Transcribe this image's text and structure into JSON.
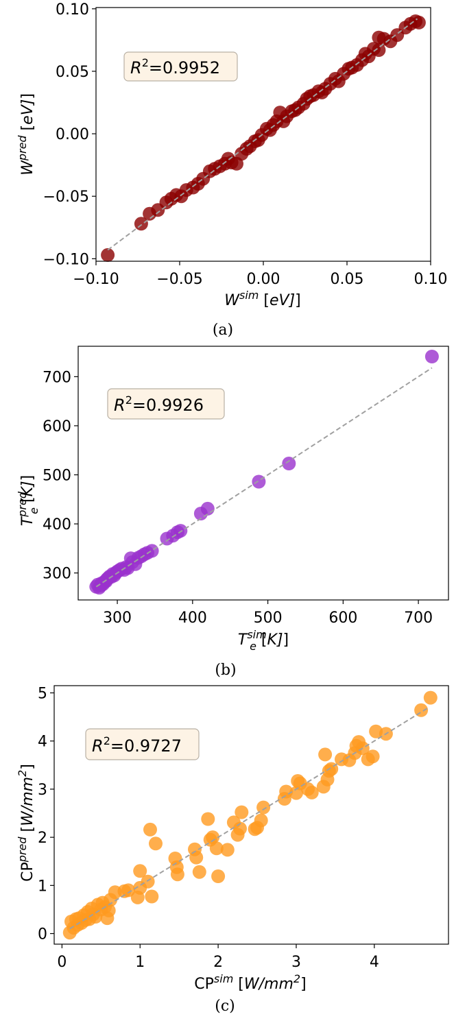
{
  "chart_data": [
    {
      "type": "scatter",
      "caption": "(a)",
      "xlabel": {
        "base": "W",
        "sup": "sim",
        "unit": " [eV]"
      },
      "ylabel": {
        "base": "W",
        "sup": "pred",
        "unit": " [eV]"
      },
      "annotation": {
        "base": "R",
        "sup": "2",
        "value": "=0.9952"
      },
      "xlim": [
        -0.1,
        0.1
      ],
      "ylim": [
        -0.102,
        0.101
      ],
      "xticks": [
        -0.1,
        -0.05,
        0.0,
        0.05,
        0.1
      ],
      "xtick_labels": [
        "−0.10",
        "−0.05",
        "0.00",
        "0.05",
        "0.10"
      ],
      "yticks": [
        -0.1,
        -0.05,
        0.0,
        0.05,
        0.1
      ],
      "ytick_labels": [
        "−0.10",
        "−0.05",
        "0.00",
        "0.05",
        "0.10"
      ],
      "fit_line": [
        [
          -0.093,
          -0.093
        ],
        [
          0.092,
          0.092
        ]
      ],
      "marker_color": "#8b0000",
      "line_color": "#a0a0a0",
      "points": [
        [
          -0.093,
          -0.097
        ],
        [
          -0.073,
          -0.072
        ],
        [
          -0.068,
          -0.064
        ],
        [
          -0.063,
          -0.061
        ],
        [
          -0.058,
          -0.055
        ],
        [
          -0.055,
          -0.052
        ],
        [
          -0.052,
          -0.049
        ],
        [
          -0.049,
          -0.05
        ],
        [
          -0.046,
          -0.045
        ],
        [
          -0.042,
          -0.043
        ],
        [
          -0.039,
          -0.04
        ],
        [
          -0.036,
          -0.036
        ],
        [
          -0.032,
          -0.03
        ],
        [
          -0.029,
          -0.028
        ],
        [
          -0.026,
          -0.026
        ],
        [
          -0.023,
          -0.024
        ],
        [
          -0.021,
          -0.02
        ],
        [
          -0.019,
          -0.023
        ],
        [
          -0.016,
          -0.024
        ],
        [
          -0.013,
          -0.016
        ],
        [
          -0.01,
          -0.012
        ],
        [
          -0.008,
          -0.01
        ],
        [
          -0.005,
          -0.006
        ],
        [
          -0.003,
          -0.005
        ],
        [
          -0.001,
          -0.001
        ],
        [
          0.002,
          0.004
        ],
        [
          0.004,
          0.003
        ],
        [
          0.006,
          0.007
        ],
        [
          0.008,
          0.01
        ],
        [
          0.01,
          0.017
        ],
        [
          0.012,
          0.01
        ],
        [
          0.014,
          0.014
        ],
        [
          0.017,
          0.018
        ],
        [
          0.019,
          0.019
        ],
        [
          0.021,
          0.021
        ],
        [
          0.024,
          0.024
        ],
        [
          0.026,
          0.028
        ],
        [
          0.028,
          0.03
        ],
        [
          0.03,
          0.031
        ],
        [
          0.033,
          0.034
        ],
        [
          0.035,
          0.033
        ],
        [
          0.037,
          0.036
        ],
        [
          0.04,
          0.04
        ],
        [
          0.043,
          0.044
        ],
        [
          0.045,
          0.042
        ],
        [
          0.048,
          0.048
        ],
        [
          0.051,
          0.052
        ],
        [
          0.053,
          0.053
        ],
        [
          0.056,
          0.055
        ],
        [
          0.059,
          0.059
        ],
        [
          0.061,
          0.064
        ],
        [
          0.063,
          0.062
        ],
        [
          0.066,
          0.068
        ],
        [
          0.069,
          0.067
        ],
        [
          0.069,
          0.077
        ],
        [
          0.072,
          0.076
        ],
        [
          0.076,
          0.074
        ],
        [
          0.08,
          0.079
        ],
        [
          0.085,
          0.085
        ],
        [
          0.088,
          0.088
        ],
        [
          0.091,
          0.09
        ],
        [
          0.093,
          0.089
        ]
      ]
    },
    {
      "type": "scatter",
      "caption": "(b)",
      "xlabel": {
        "base": "T",
        "sup": "sim",
        "sub": "e",
        "unit": " [K]"
      },
      "ylabel": {
        "base": "T",
        "sup": "pred",
        "sub": "e",
        "unit": " [K]"
      },
      "annotation": {
        "base": "R",
        "sup": "2",
        "value": "=0.9926"
      },
      "xlim": [
        248,
        740
      ],
      "ylim": [
        245,
        762
      ],
      "xticks": [
        300,
        400,
        500,
        600,
        700
      ],
      "xtick_labels": [
        "300",
        "400",
        "500",
        "600",
        "700"
      ],
      "yticks": [
        300,
        400,
        500,
        600,
        700
      ],
      "ytick_labels": [
        "300",
        "400",
        "500",
        "600",
        "700"
      ],
      "fit_line": [
        [
          272,
          272
        ],
        [
          718,
          718
        ]
      ],
      "marker_color": "#9a32cd",
      "line_color": "#a0a0a0",
      "points": [
        [
          272,
          272
        ],
        [
          274,
          276
        ],
        [
          276,
          270
        ],
        [
          278,
          274
        ],
        [
          279,
          279
        ],
        [
          281,
          277
        ],
        [
          283,
          282
        ],
        [
          285,
          283
        ],
        [
          286,
          287
        ],
        [
          288,
          290
        ],
        [
          290,
          293
        ],
        [
          292,
          292
        ],
        [
          294,
          298
        ],
        [
          296,
          295
        ],
        [
          298,
          300
        ],
        [
          300,
          303
        ],
        [
          303,
          306
        ],
        [
          306,
          309
        ],
        [
          309,
          306
        ],
        [
          312,
          312
        ],
        [
          314,
          310
        ],
        [
          318,
          330
        ],
        [
          320,
          322
        ],
        [
          324,
          318
        ],
        [
          328,
          331
        ],
        [
          332,
          334
        ],
        [
          336,
          338
        ],
        [
          340,
          341
        ],
        [
          346,
          345
        ],
        [
          366,
          370
        ],
        [
          374,
          376
        ],
        [
          380,
          383
        ],
        [
          384,
          386
        ],
        [
          411,
          421
        ],
        [
          420,
          431
        ],
        [
          488,
          486
        ],
        [
          528,
          523
        ],
        [
          718,
          741
        ]
      ]
    },
    {
      "type": "scatter",
      "caption": "(c)",
      "xlabel": {
        "base": "CP",
        "sup": "sim",
        "unit": " [W/mm",
        "unit_sup": "2",
        "unit_end": "]"
      },
      "ylabel": {
        "base": "CP",
        "sup": "pred",
        "unit": " [W/mm",
        "unit_sup": "2",
        "unit_end": "]"
      },
      "annotation": {
        "base": "R",
        "sup": "2",
        "value": "=0.9727"
      },
      "xlim": [
        -0.1,
        4.95
      ],
      "ylim": [
        -0.22,
        5.15
      ],
      "xticks": [
        0,
        1,
        2,
        3,
        4
      ],
      "xtick_labels": [
        "0",
        "1",
        "2",
        "3",
        "4"
      ],
      "yticks": [
        0,
        1,
        2,
        3,
        4,
        5
      ],
      "ytick_labels": [
        "0",
        "1",
        "2",
        "3",
        "4",
        "5"
      ],
      "fit_line": [
        [
          0.1,
          0.1
        ],
        [
          4.7,
          4.7
        ]
      ],
      "marker_color": "#ff9a1f",
      "line_color": "#a0a0a0",
      "points": [
        [
          0.1,
          0.02
        ],
        [
          0.12,
          0.25
        ],
        [
          0.15,
          0.12
        ],
        [
          0.18,
          0.3
        ],
        [
          0.2,
          0.18
        ],
        [
          0.22,
          0.32
        ],
        [
          0.25,
          0.22
        ],
        [
          0.28,
          0.38
        ],
        [
          0.3,
          0.28
        ],
        [
          0.33,
          0.45
        ],
        [
          0.35,
          0.3
        ],
        [
          0.38,
          0.52
        ],
        [
          0.4,
          0.4
        ],
        [
          0.43,
          0.35
        ],
        [
          0.46,
          0.6
        ],
        [
          0.5,
          0.5
        ],
        [
          0.52,
          0.64
        ],
        [
          0.55,
          0.55
        ],
        [
          0.58,
          0.32
        ],
        [
          0.6,
          0.48
        ],
        [
          0.62,
          0.7
        ],
        [
          0.68,
          0.86
        ],
        [
          0.8,
          0.88
        ],
        [
          0.85,
          0.9
        ],
        [
          0.97,
          0.75
        ],
        [
          1.0,
          0.95
        ],
        [
          1.0,
          1.3
        ],
        [
          1.1,
          1.08
        ],
        [
          1.13,
          2.16
        ],
        [
          1.15,
          0.77
        ],
        [
          1.2,
          1.87
        ],
        [
          1.45,
          1.56
        ],
        [
          1.47,
          1.38
        ],
        [
          1.48,
          1.23
        ],
        [
          1.7,
          1.75
        ],
        [
          1.72,
          1.58
        ],
        [
          1.76,
          1.28
        ],
        [
          1.87,
          2.38
        ],
        [
          1.9,
          1.95
        ],
        [
          1.93,
          2.0
        ],
        [
          1.98,
          1.77
        ],
        [
          2.0,
          1.19
        ],
        [
          2.12,
          1.74
        ],
        [
          2.2,
          2.31
        ],
        [
          2.25,
          2.05
        ],
        [
          2.28,
          2.18
        ],
        [
          2.3,
          2.52
        ],
        [
          2.47,
          2.17
        ],
        [
          2.5,
          2.2
        ],
        [
          2.55,
          2.35
        ],
        [
          2.58,
          2.62
        ],
        [
          2.85,
          2.8
        ],
        [
          2.87,
          2.95
        ],
        [
          3.0,
          2.92
        ],
        [
          3.02,
          3.17
        ],
        [
          3.05,
          3.12
        ],
        [
          3.15,
          3.0
        ],
        [
          3.2,
          2.93
        ],
        [
          3.35,
          3.05
        ],
        [
          3.37,
          3.72
        ],
        [
          3.4,
          3.2
        ],
        [
          3.42,
          3.38
        ],
        [
          3.45,
          3.42
        ],
        [
          3.58,
          3.62
        ],
        [
          3.68,
          3.6
        ],
        [
          3.75,
          3.75
        ],
        [
          3.77,
          3.9
        ],
        [
          3.8,
          3.98
        ],
        [
          3.85,
          3.85
        ],
        [
          3.92,
          3.62
        ],
        [
          3.98,
          3.68
        ],
        [
          4.02,
          4.2
        ],
        [
          4.15,
          4.15
        ],
        [
          4.6,
          4.64
        ],
        [
          4.72,
          4.9
        ]
      ]
    }
  ]
}
